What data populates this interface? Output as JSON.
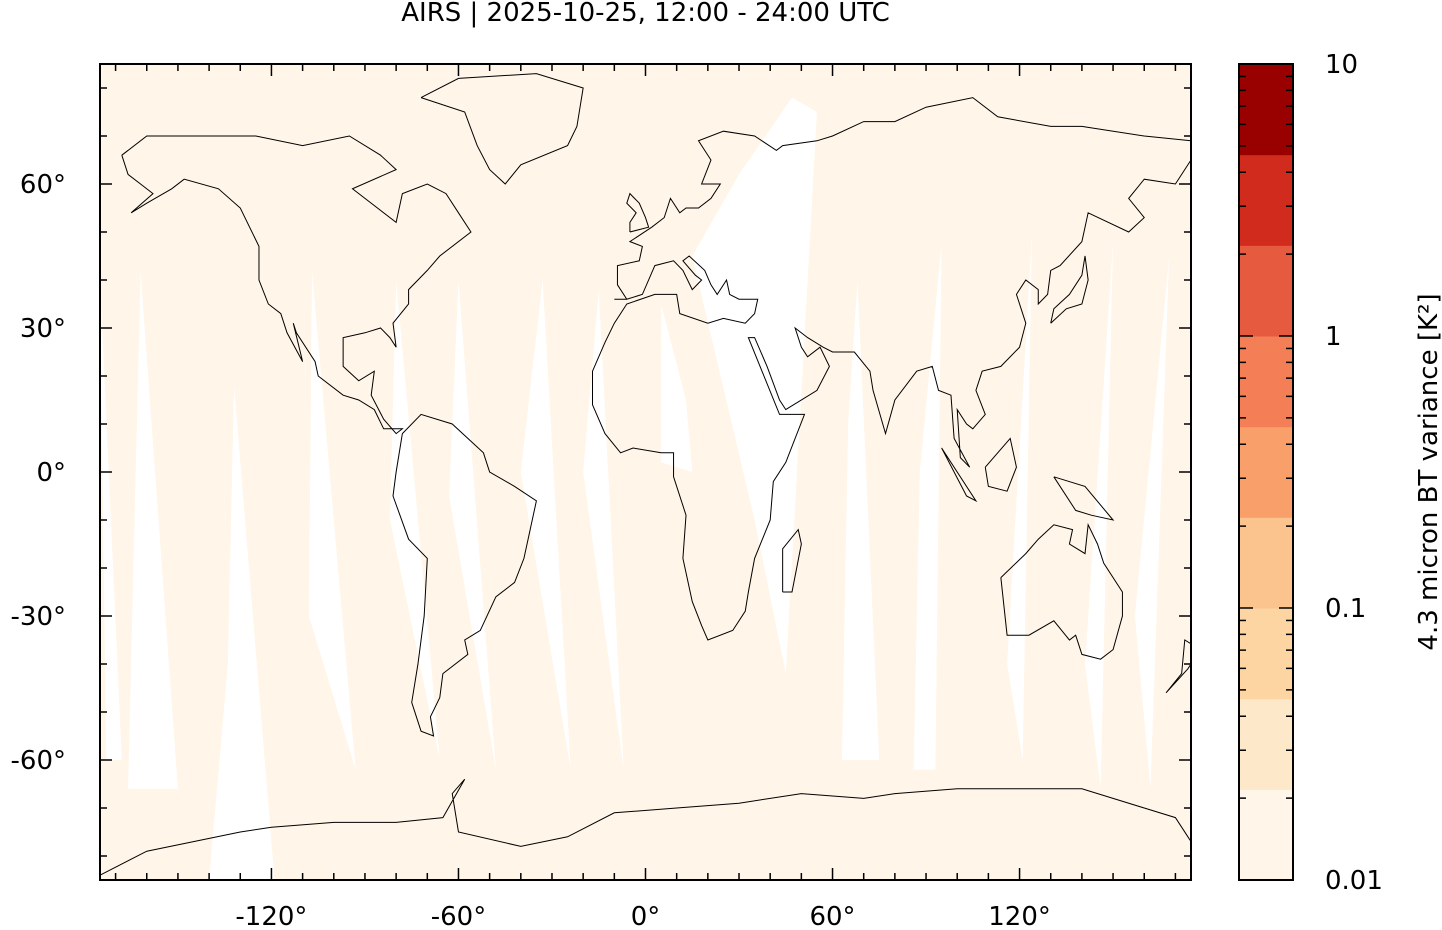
{
  "title": "AIRS | 2025-10-25, 12:00 - 24:00 UTC",
  "map": {
    "projection": "plate-carree",
    "lon_range": [
      -175,
      175
    ],
    "lat_range": [
      -85,
      85
    ],
    "x_ticks": [
      -120,
      -60,
      0,
      60,
      120
    ],
    "x_tick_labels": [
      "-120°",
      "-60°",
      "0°",
      "60°",
      "120°"
    ],
    "y_ticks": [
      60,
      30,
      0,
      -30,
      -60
    ],
    "y_tick_labels": [
      "60°",
      "30°",
      "0°",
      "-30°",
      "-60°"
    ],
    "background_color": "#fff5e8",
    "gap_color": "#ffffff",
    "coastline_color": "#000000"
  },
  "colorbar": {
    "label": "4.3 micron BT variance [K²]",
    "scale": "log",
    "range": [
      0.01,
      10
    ],
    "tick_labels": [
      "10",
      "1",
      "0.1",
      "0.01"
    ],
    "tick_values": [
      10,
      1,
      0.1,
      0.01
    ],
    "colors": [
      "#fff5e8",
      "#fde8c9",
      "#fcd5a3",
      "#fbc38e",
      "#f9a06a",
      "#f47f56",
      "#e65a40",
      "#d02b1d",
      "#990000"
    ]
  }
}
